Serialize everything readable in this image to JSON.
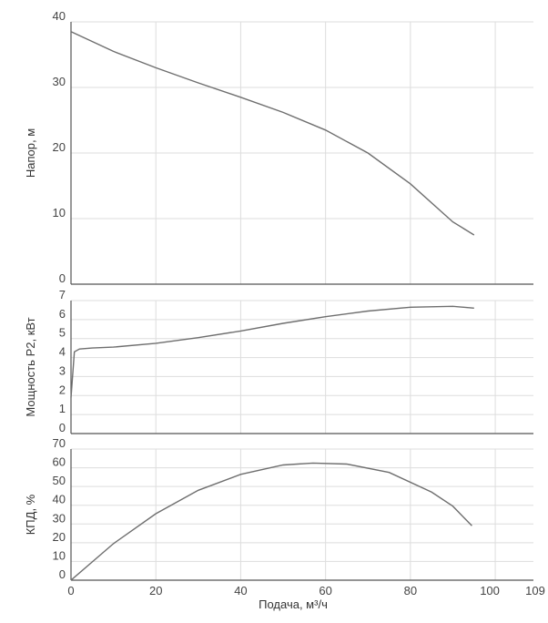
{
  "chart_data": [
    {
      "type": "line",
      "ylabel": "Напор, м",
      "xlim": [
        0,
        109
      ],
      "ylim": [
        0,
        40
      ],
      "yticks": [
        "0",
        "10",
        "20",
        "30",
        "40"
      ],
      "grid": true,
      "series": [
        {
          "x": [
            0,
            10,
            20,
            30,
            40,
            50,
            60,
            70,
            80,
            90,
            95
          ],
          "y": [
            38.5,
            35.5,
            33,
            30.7,
            28.5,
            26.2,
            23.5,
            20,
            15.3,
            9.5,
            7.5
          ]
        }
      ]
    },
    {
      "type": "line",
      "ylabel": "Мощность P2, кВт",
      "xlim": [
        0,
        109
      ],
      "ylim": [
        0,
        7
      ],
      "yticks": [
        "0",
        "1",
        "2",
        "3",
        "4",
        "5",
        "6",
        "7"
      ],
      "grid": true,
      "series": [
        {
          "x": [
            0,
            0.8,
            2,
            5,
            10,
            20,
            30,
            40,
            50,
            60,
            70,
            80,
            90,
            95
          ],
          "y": [
            1.9,
            4.3,
            4.45,
            4.5,
            4.55,
            4.75,
            5.05,
            5.4,
            5.8,
            6.15,
            6.45,
            6.65,
            6.7,
            6.6
          ]
        }
      ]
    },
    {
      "type": "line",
      "ylabel": "КПД, %",
      "xlabel": "Подача, м³/ч",
      "xlim": [
        0,
        109
      ],
      "ylim": [
        0,
        70
      ],
      "xticks": [
        "0",
        "20",
        "40",
        "60",
        "80",
        "100",
        "109"
      ],
      "yticks": [
        "0",
        "10",
        "20",
        "30",
        "40",
        "50",
        "60",
        "70"
      ],
      "grid": true,
      "series": [
        {
          "x": [
            0,
            10,
            20,
            30,
            40,
            50,
            57,
            65,
            75,
            85,
            90,
            94.5
          ],
          "y": [
            0,
            19.5,
            35.5,
            48,
            56.5,
            61.5,
            62.5,
            62,
            57.5,
            47,
            39.5,
            29
          ]
        }
      ]
    }
  ],
  "style": {
    "line_color": "#6e6e6e",
    "grid_color": "#dddddd",
    "axis_color": "#555555"
  }
}
